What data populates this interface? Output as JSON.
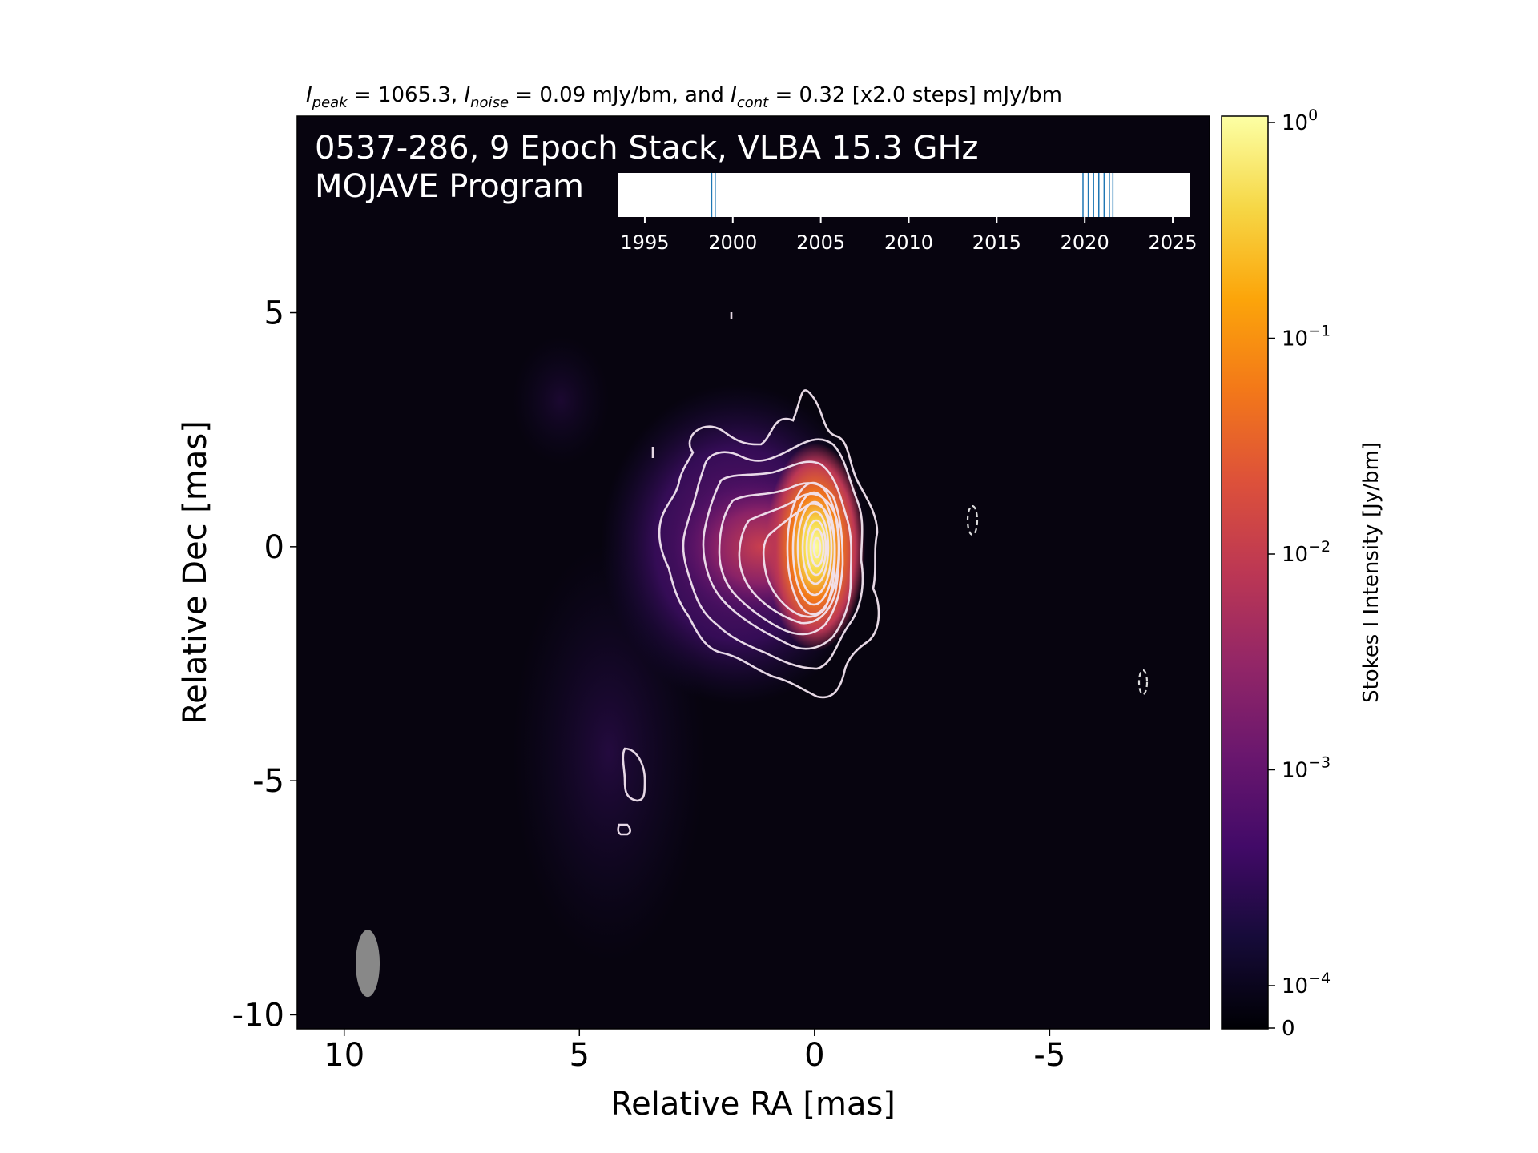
{
  "chart_data": {
    "type": "heatmap",
    "header": {
      "peak_sym": "I",
      "peak_sub": "peak",
      "peak_text": " = 1065.3, ",
      "noise_sym": "I",
      "noise_sub": "noise",
      "noise_text": " = 0.09 mJy/bm, and ",
      "cont_sym": "I",
      "cont_sub": "cont",
      "cont_text": " = 0.32 [x2.0 steps] mJy/bm"
    },
    "title_line1": "0537-286, 9 Epoch Stack, VLBA 15.3 GHz",
    "title_line2": "MOJAVE Program",
    "xlabel": "Relative RA [mas]",
    "ylabel": "Relative Dec [mas]",
    "xlim": [
      11,
      -8.4
    ],
    "ylim": [
      -10.3,
      9.2
    ],
    "x_ticks": [
      10,
      5,
      0,
      -5
    ],
    "y_ticks": [
      5,
      0,
      -5,
      -10
    ],
    "x_tick_labels": [
      "10",
      "5",
      "0",
      "-5"
    ],
    "y_tick_labels": [
      "5",
      "0",
      "-5",
      "-10"
    ],
    "colorbar": {
      "label": "Stokes I Intensity [Jy/bm]",
      "scale": "log",
      "ticks": [
        {
          "value": 1,
          "base": "10",
          "exp": "0"
        },
        {
          "value": 0.1,
          "base": "10",
          "exp": "−1"
        },
        {
          "value": 0.01,
          "base": "10",
          "exp": "−2"
        },
        {
          "value": 0.001,
          "base": "10",
          "exp": "−3"
        },
        {
          "value": 0.0001,
          "base": "10",
          "exp": "−4"
        }
      ],
      "zero_label": "0",
      "colormap": "inferno"
    },
    "core": {
      "ra": 0,
      "dec": 0
    },
    "beam": {
      "ra": 9.5,
      "dec": -8.9,
      "shape": "ellipse",
      "color": "#888888"
    },
    "epoch_timeline": {
      "xlim": [
        1993.5,
        2026
      ],
      "tick_values": [
        1995,
        2000,
        2005,
        2010,
        2015,
        2020,
        2025
      ],
      "tick_labels": [
        "1995",
        "2000",
        "2005",
        "2010",
        "2015",
        "2020",
        "2025"
      ],
      "epochs": [
        1998.8,
        1999.0,
        2019.9,
        2020.2,
        2020.5,
        2020.8,
        2021.1,
        2021.4,
        2021.6
      ],
      "epoch_color": "#1f77b4"
    }
  }
}
